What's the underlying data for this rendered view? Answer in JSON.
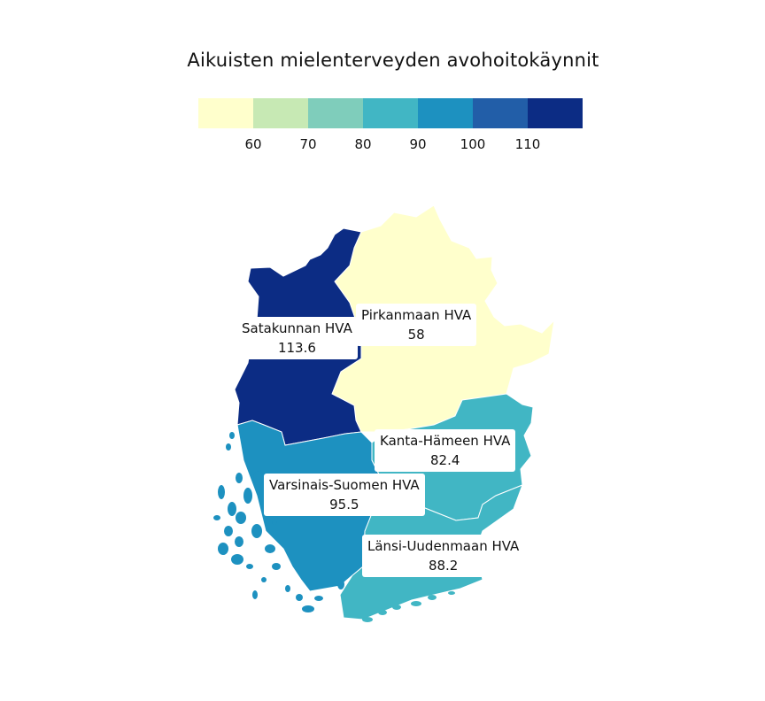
{
  "title": "Aikuisten mielenterveyden avohoitokäynnit",
  "legend": {
    "colors": [
      "#ffffcc",
      "#c7e9b4",
      "#7fcdbb",
      "#41b6c4",
      "#1d91c0",
      "#225ea8",
      "#0c2c84"
    ],
    "labels": [
      "60",
      "70",
      "80",
      "90",
      "100",
      "110"
    ]
  },
  "regions": [
    {
      "name": "Satakunnan HVA",
      "value": "113.6",
      "color": "#0c2c84"
    },
    {
      "name": "Pirkanmaan HVA",
      "value": "58",
      "color": "#ffffcc"
    },
    {
      "name": "Kanta-Hämeen HVA",
      "value": "82.4",
      "color": "#41b6c4"
    },
    {
      "name": "Varsinais-Suomen HVA",
      "value": "95.5",
      "color": "#1d91c0"
    },
    {
      "name": "Länsi-Uudenmaan HVA",
      "value": "88.2",
      "color": "#41b6c4"
    }
  ]
}
